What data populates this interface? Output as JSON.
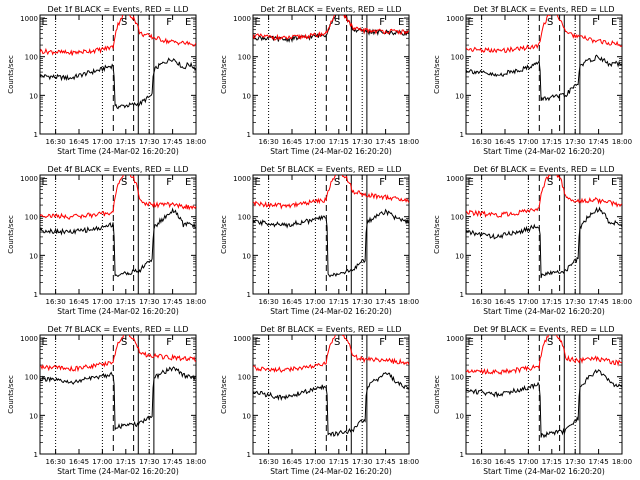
{
  "colors": {
    "events": "#000000",
    "lld": "#ff0000",
    "background": "#ffffff"
  },
  "shared": {
    "ylabel": "Counts/sec",
    "xlabel": "Start Time (24-Mar-02 16:20:20)",
    "xticklabels": [
      "16:30",
      "16:45",
      "17:00",
      "17:15",
      "17:30",
      "17:45",
      "18:00"
    ],
    "yticklabels": [
      "1",
      "10",
      "100",
      "1000"
    ],
    "marker_labels": [
      "E",
      "S",
      "F",
      "E"
    ],
    "series_names": [
      "Events",
      "LLD"
    ]
  },
  "chart_data": [
    {
      "type": "line",
      "title": "Det 1f  BLACK = Events, RED = LLD",
      "xlim_minutes_after_start": [
        0,
        100
      ],
      "ylim": [
        1,
        1200
      ],
      "yscale": "log",
      "series": [
        {
          "name": "Events",
          "color": "#000000",
          "x": [
            0,
            20,
            38,
            47,
            48,
            64,
            72,
            73,
            82,
            85,
            92,
            95,
            100
          ],
          "y": [
            32,
            28,
            45,
            60,
            5,
            6,
            10,
            45,
            80,
            90,
            50,
            65,
            50
          ]
        },
        {
          "name": "LLD",
          "color": "#ff0000",
          "x": [
            0,
            20,
            38,
            47,
            52,
            55,
            60,
            64,
            72,
            82,
            95,
            100
          ],
          "y": [
            140,
            125,
            150,
            180,
            1000,
            1500,
            1000,
            400,
            320,
            250,
            220,
            200
          ]
        }
      ]
    },
    {
      "type": "line",
      "title": "Det 2f  BLACK = Events, RED = LLD",
      "xlim_minutes_after_start": [
        0,
        100
      ],
      "ylim": [
        1,
        1200
      ],
      "yscale": "log",
      "series": [
        {
          "name": "Events",
          "color": "#000000",
          "x": [
            0,
            20,
            38,
            47,
            52,
            55,
            60,
            64,
            72,
            82,
            95,
            100
          ],
          "y": [
            320,
            280,
            330,
            380,
            1000,
            1500,
            1000,
            500,
            450,
            430,
            420,
            410
          ]
        },
        {
          "name": "LLD",
          "color": "#ff0000",
          "x": [
            0,
            20,
            38,
            47,
            52,
            55,
            60,
            64,
            72,
            82,
            95,
            100
          ],
          "y": [
            350,
            300,
            350,
            400,
            1000,
            1500,
            1000,
            520,
            480,
            460,
            440,
            430
          ]
        }
      ]
    },
    {
      "type": "line",
      "title": "Det 3f  BLACK = Events, RED = LLD",
      "xlim_minutes_after_start": [
        0,
        100
      ],
      "ylim": [
        1,
        1200
      ],
      "yscale": "log",
      "series": [
        {
          "name": "Events",
          "color": "#000000",
          "x": [
            0,
            20,
            38,
            47,
            48,
            64,
            72,
            73,
            82,
            85,
            92,
            95,
            100
          ],
          "y": [
            45,
            32,
            50,
            70,
            8,
            10,
            20,
            60,
            90,
            100,
            60,
            70,
            60
          ]
        },
        {
          "name": "LLD",
          "color": "#ff0000",
          "x": [
            0,
            20,
            38,
            47,
            52,
            55,
            60,
            64,
            72,
            82,
            95,
            100
          ],
          "y": [
            160,
            140,
            170,
            200,
            1000,
            1500,
            1000,
            400,
            330,
            260,
            220,
            200
          ]
        }
      ]
    },
    {
      "type": "line",
      "title": "Det 4f  BLACK = Events, RED = LLD",
      "xlim_minutes_after_start": [
        0,
        100
      ],
      "ylim": [
        1,
        1200
      ],
      "yscale": "log",
      "series": [
        {
          "name": "Events",
          "color": "#000000",
          "x": [
            0,
            20,
            38,
            47,
            48,
            64,
            72,
            73,
            82,
            85,
            92,
            95,
            100
          ],
          "y": [
            45,
            40,
            50,
            65,
            3,
            4,
            8,
            50,
            110,
            150,
            60,
            70,
            55
          ]
        },
        {
          "name": "LLD",
          "color": "#ff0000",
          "x": [
            0,
            20,
            38,
            47,
            52,
            55,
            60,
            64,
            72,
            82,
            95,
            100
          ],
          "y": [
            110,
            100,
            115,
            130,
            1000,
            1500,
            1000,
            250,
            200,
            210,
            180,
            170
          ]
        }
      ]
    },
    {
      "type": "line",
      "title": "Det 5f  BLACK = Events, RED = LLD",
      "xlim_minutes_after_start": [
        0,
        100
      ],
      "ylim": [
        1,
        1200
      ],
      "yscale": "log",
      "series": [
        {
          "name": "Events",
          "color": "#000000",
          "x": [
            0,
            20,
            38,
            47,
            48,
            64,
            72,
            73,
            82,
            85,
            92,
            95,
            100
          ],
          "y": [
            75,
            60,
            80,
            100,
            3,
            4,
            8,
            70,
            120,
            140,
            90,
            80,
            70
          ]
        },
        {
          "name": "LLD",
          "color": "#ff0000",
          "x": [
            0,
            20,
            38,
            47,
            52,
            55,
            60,
            64,
            72,
            82,
            95,
            100
          ],
          "y": [
            220,
            190,
            240,
            280,
            1000,
            1500,
            1000,
            450,
            380,
            330,
            280,
            250
          ]
        }
      ]
    },
    {
      "type": "line",
      "title": "Det 6f  BLACK = Events, RED = LLD",
      "xlim_minutes_after_start": [
        0,
        100
      ],
      "ylim": [
        1,
        1200
      ],
      "yscale": "log",
      "series": [
        {
          "name": "Events",
          "color": "#000000",
          "x": [
            0,
            20,
            38,
            47,
            48,
            64,
            72,
            73,
            82,
            85,
            92,
            95,
            100
          ],
          "y": [
            40,
            30,
            45,
            60,
            3,
            4,
            8,
            50,
            130,
            160,
            70,
            70,
            60
          ]
        },
        {
          "name": "LLD",
          "color": "#ff0000",
          "x": [
            0,
            20,
            38,
            47,
            52,
            55,
            60,
            64,
            72,
            82,
            95,
            100
          ],
          "y": [
            130,
            110,
            135,
            160,
            1000,
            1500,
            1000,
            300,
            250,
            280,
            220,
            200
          ]
        }
      ]
    },
    {
      "type": "line",
      "title": "Det 7f  BLACK = Events, RED = LLD",
      "xlim_minutes_after_start": [
        0,
        100
      ],
      "ylim": [
        1,
        1200
      ],
      "yscale": "log",
      "series": [
        {
          "name": "Events",
          "color": "#000000",
          "x": [
            0,
            20,
            38,
            47,
            48,
            64,
            72,
            73,
            82,
            85,
            92,
            95,
            100
          ],
          "y": [
            90,
            70,
            100,
            120,
            5,
            6,
            10,
            90,
            150,
            170,
            110,
            100,
            90
          ]
        },
        {
          "name": "LLD",
          "color": "#ff0000",
          "x": [
            0,
            20,
            38,
            47,
            52,
            55,
            60,
            64,
            72,
            82,
            95,
            100
          ],
          "y": [
            180,
            160,
            200,
            240,
            1000,
            1500,
            1000,
            400,
            350,
            320,
            290,
            280
          ]
        }
      ]
    },
    {
      "type": "line",
      "title": "Det 8f  BLACK = Events, RED = LLD",
      "xlim_minutes_after_start": [
        0,
        100
      ],
      "ylim": [
        1,
        1200
      ],
      "yscale": "log",
      "series": [
        {
          "name": "Events",
          "color": "#000000",
          "x": [
            0,
            20,
            38,
            47,
            48,
            64,
            72,
            73,
            82,
            85,
            92,
            95,
            100
          ],
          "y": [
            40,
            28,
            45,
            60,
            3,
            4,
            8,
            50,
            100,
            130,
            70,
            60,
            55
          ]
        },
        {
          "name": "LLD",
          "color": "#ff0000",
          "x": [
            0,
            20,
            38,
            47,
            52,
            55,
            60,
            64,
            72,
            82,
            95,
            100
          ],
          "y": [
            170,
            150,
            180,
            220,
            1000,
            1500,
            1000,
            330,
            280,
            270,
            240,
            230
          ]
        }
      ]
    },
    {
      "type": "line",
      "title": "Det 9f  BLACK = Events, RED = LLD",
      "xlim_minutes_after_start": [
        0,
        100
      ],
      "ylim": [
        1,
        1200
      ],
      "yscale": "log",
      "series": [
        {
          "name": "Events",
          "color": "#000000",
          "x": [
            0,
            20,
            38,
            47,
            48,
            64,
            72,
            73,
            82,
            85,
            92,
            95,
            100
          ],
          "y": [
            45,
            35,
            50,
            65,
            3,
            4,
            8,
            50,
            120,
            150,
            70,
            65,
            55
          ]
        },
        {
          "name": "LLD",
          "color": "#ff0000",
          "x": [
            0,
            20,
            38,
            47,
            52,
            55,
            60,
            64,
            72,
            82,
            95,
            100
          ],
          "y": [
            150,
            130,
            160,
            190,
            1000,
            1500,
            1000,
            300,
            260,
            300,
            240,
            230
          ]
        }
      ]
    }
  ]
}
